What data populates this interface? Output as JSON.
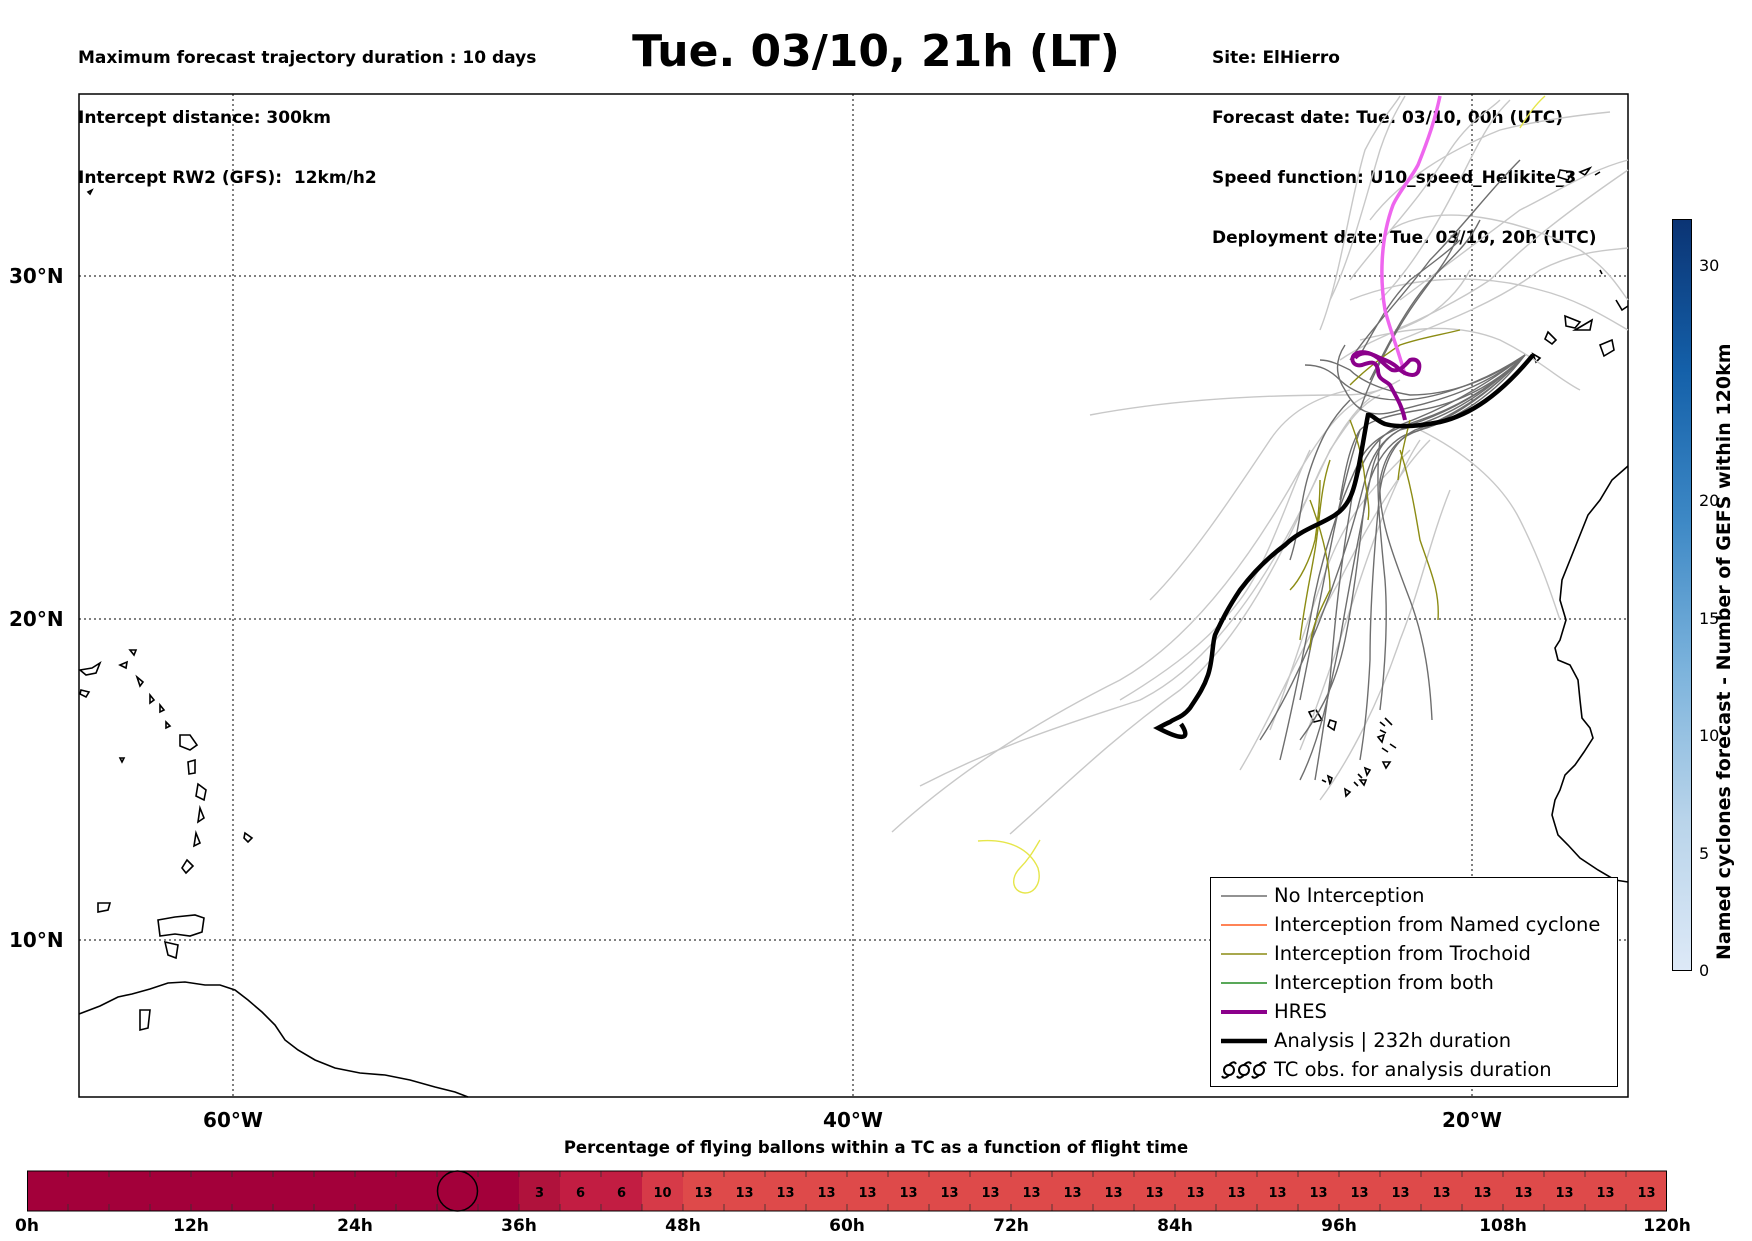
{
  "header": {
    "info_left": [
      "Maximum forecast trajectory duration : 10 days",
      "Intercept distance: 300km",
      "Intercept RW2 (GFS):  12km/h2"
    ],
    "info_right": [
      "Site: ElHierro",
      "Forecast date: Tue. 03/10, 00h (UTC)",
      "Speed function: U10_speed_Helikite_3",
      "Deployment date: Tue. 03/10, 20h (UTC)"
    ],
    "title": "Tue. 03/10, 21h (LT)"
  },
  "map": {
    "lat_labels": [
      "30°N",
      "20°N",
      "10°N"
    ],
    "lon_labels": [
      "60°W",
      "40°W",
      "20°W"
    ],
    "colors": {
      "no_interception": "#6e6e6e",
      "ensemble_faint": "#c8c8c8",
      "named_cyclone": "#ff5a1e",
      "trochoid": "#8c8c14",
      "both": "#228b22",
      "hres": "#8b008b",
      "hres_extension": "#ee66ee",
      "analysis": "#000000",
      "yellow_track": "#e6e64a"
    }
  },
  "legend": {
    "items": [
      {
        "label": "No Interception",
        "style": "no-interception"
      },
      {
        "label": "Interception from Named cyclone",
        "style": "named-cyclone"
      },
      {
        "label": "Interception from Trochoid",
        "style": "trochoid"
      },
      {
        "label": "Interception from both",
        "style": "both"
      },
      {
        "label": "HRES",
        "style": "hres"
      },
      {
        "label": "Analysis | 232h duration",
        "style": "analysis"
      },
      {
        "label": "TC obs. for analysis duration",
        "style": "tc-obs"
      }
    ]
  },
  "colorbar": {
    "label": "Named cyclones forecast - Number of GEFS within 120km",
    "ticks": [
      "0",
      "5",
      "10",
      "15",
      "20",
      "30"
    ],
    "tick_values": [
      0,
      5,
      10,
      15,
      20,
      30
    ],
    "max": 32
  },
  "timebar": {
    "title": "Percentage of flying ballons within a TC as a function of flight time",
    "hours_total": 120,
    "step_hours": 3,
    "labels": [
      "0h",
      "12h",
      "24h",
      "36h",
      "48h",
      "60h",
      "72h",
      "84h",
      "96h",
      "108h",
      "120h"
    ],
    "circle_hour": 31.5,
    "segments": [
      {
        "value": "",
        "from": 0,
        "to": 36,
        "color": "#a3003a"
      },
      {
        "value": "3",
        "from": 36,
        "to": 39,
        "color": "#b0123c"
      },
      {
        "value": "6",
        "from": 39,
        "to": 42,
        "color": "#c21d42"
      },
      {
        "value": "6",
        "from": 42,
        "to": 45,
        "color": "#c21d42"
      },
      {
        "value": "10",
        "from": 45,
        "to": 48,
        "color": "#d63a48"
      },
      {
        "value": "13",
        "from": 48,
        "to": 51,
        "color": "#de4a4a"
      },
      {
        "value": "13",
        "from": 51,
        "to": 54,
        "color": "#de4a4a"
      },
      {
        "value": "13",
        "from": 54,
        "to": 57,
        "color": "#de4a4a"
      },
      {
        "value": "13",
        "from": 57,
        "to": 60,
        "color": "#de4a4a"
      },
      {
        "value": "13",
        "from": 60,
        "to": 63,
        "color": "#de4a4a"
      },
      {
        "value": "13",
        "from": 63,
        "to": 66,
        "color": "#de4a4a"
      },
      {
        "value": "13",
        "from": 66,
        "to": 69,
        "color": "#de4a4a"
      },
      {
        "value": "13",
        "from": 69,
        "to": 72,
        "color": "#de4a4a"
      },
      {
        "value": "13",
        "from": 72,
        "to": 75,
        "color": "#de4a4a"
      },
      {
        "value": "13",
        "from": 75,
        "to": 78,
        "color": "#de4a4a"
      },
      {
        "value": "13",
        "from": 78,
        "to": 81,
        "color": "#de4a4a"
      },
      {
        "value": "13",
        "from": 81,
        "to": 84,
        "color": "#de4a4a"
      },
      {
        "value": "13",
        "from": 84,
        "to": 87,
        "color": "#de4a4a"
      },
      {
        "value": "13",
        "from": 87,
        "to": 90,
        "color": "#de4a4a"
      },
      {
        "value": "13",
        "from": 90,
        "to": 93,
        "color": "#de4a4a"
      },
      {
        "value": "13",
        "from": 93,
        "to": 96,
        "color": "#de4a4a"
      },
      {
        "value": "13",
        "from": 96,
        "to": 99,
        "color": "#de4a4a"
      },
      {
        "value": "13",
        "from": 99,
        "to": 102,
        "color": "#de4a4a"
      },
      {
        "value": "13",
        "from": 102,
        "to": 105,
        "color": "#de4a4a"
      },
      {
        "value": "13",
        "from": 105,
        "to": 108,
        "color": "#de4a4a"
      },
      {
        "value": "13",
        "from": 108,
        "to": 111,
        "color": "#de4a4a"
      },
      {
        "value": "13",
        "from": 111,
        "to": 114,
        "color": "#de4a4a"
      },
      {
        "value": "13",
        "from": 114,
        "to": 117,
        "color": "#de4a4a"
      },
      {
        "value": "13",
        "from": 117,
        "to": 120,
        "color": "#de4a4a"
      }
    ]
  }
}
